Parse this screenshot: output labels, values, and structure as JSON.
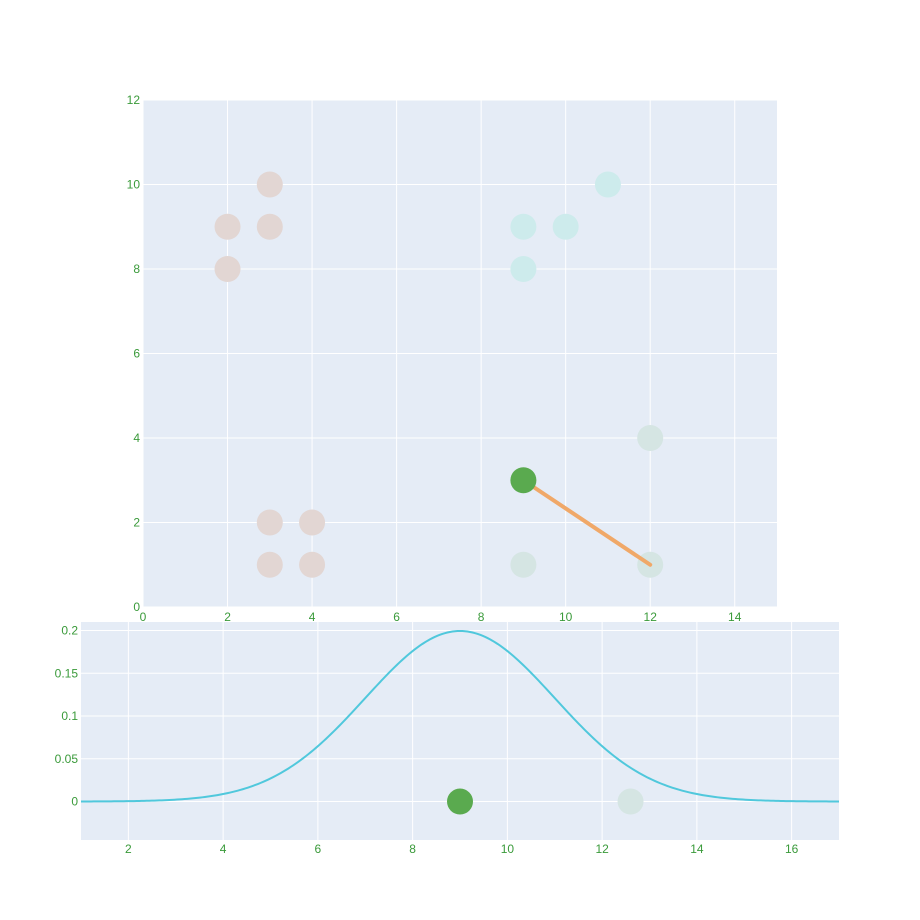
{
  "colors": {
    "plot_bg": "#e5ecf6",
    "tick_text": "#3a9a3a",
    "highlight_point": "#5aaa4f",
    "line_segment": "#f0a868",
    "curve": "#50c8dc",
    "cluster_brown": "#e2d6d3",
    "cluster_cyan": "#cdebec",
    "cluster_teal": "#d5e5e3"
  },
  "chart_data": [
    {
      "type": "scatter",
      "xlim": [
        0,
        15
      ],
      "ylim": [
        0,
        12
      ],
      "x_ticks": [
        0,
        2,
        4,
        6,
        8,
        10,
        12,
        14
      ],
      "y_ticks": [
        0,
        2,
        4,
        6,
        8,
        10,
        12
      ],
      "x_tick_labels": [
        "0",
        "2",
        "4",
        "6",
        "8",
        "10",
        "12",
        "14"
      ],
      "y_tick_labels": [
        "0",
        "2",
        "4",
        "6",
        "8",
        "10",
        "12"
      ],
      "grid": true,
      "series": [
        {
          "color": "#e2d6d3",
          "points": [
            [
              2,
              9
            ],
            [
              2,
              8
            ],
            [
              3,
              10
            ],
            [
              3,
              9
            ],
            [
              3,
              2
            ],
            [
              4,
              2
            ],
            [
              3,
              1
            ],
            [
              4,
              1
            ]
          ]
        },
        {
          "color": "#cdebec",
          "points": [
            [
              9,
              9
            ],
            [
              9,
              8
            ],
            [
              10,
              9
            ],
            [
              11,
              10
            ]
          ]
        },
        {
          "color": "#d5e5e3",
          "points": [
            [
              12,
              4
            ],
            [
              12,
              1
            ],
            [
              9,
              1
            ]
          ]
        }
      ],
      "highlight": {
        "x": 9,
        "y": 3,
        "color": "#5aaa4f"
      },
      "segment": {
        "from": [
          9,
          3
        ],
        "to": [
          12,
          1
        ],
        "color": "#f0a868"
      }
    },
    {
      "type": "line",
      "xlim": [
        1,
        17
      ],
      "ylim": [
        -0.045,
        0.21
      ],
      "x_ticks": [
        2,
        4,
        6,
        8,
        10,
        12,
        14,
        16
      ],
      "y_ticks": [
        0,
        0.05,
        0.1,
        0.15,
        0.2
      ],
      "x_tick_labels": [
        "2",
        "4",
        "6",
        "8",
        "10",
        "12",
        "14",
        "16"
      ],
      "y_tick_labels": [
        "0",
        "0.05",
        "0.1",
        "0.15",
        "0.2"
      ],
      "grid": true,
      "curve": {
        "kind": "normal-pdf",
        "mean": 9,
        "std": 2,
        "color": "#50c8dc"
      },
      "points": [
        {
          "x": 9,
          "y": 0,
          "color": "#5aaa4f"
        },
        {
          "x": 12.6,
          "y": 0,
          "color": "#d5e5e3"
        }
      ]
    }
  ]
}
